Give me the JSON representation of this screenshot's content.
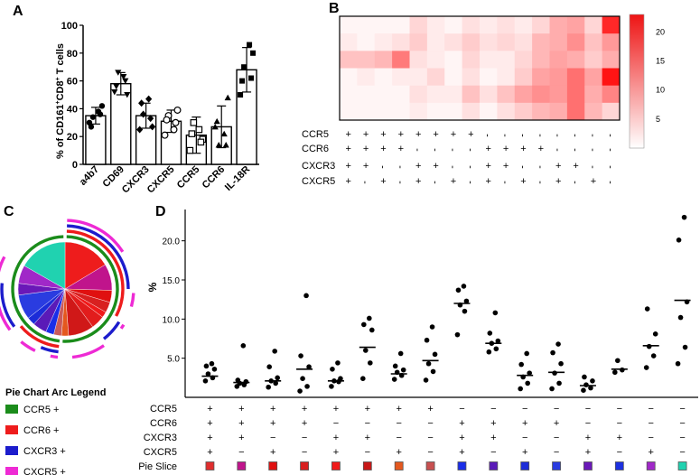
{
  "panels": {
    "A": "A",
    "B": "B",
    "C": "C",
    "D": "D"
  },
  "chart_data": [
    {
      "id": "A",
      "type": "bar",
      "ylabel": "% of CD161+CD8+ T cells",
      "ylabel_main": "% of CD161",
      "ylabel_sup1": "+",
      "ylabel_mid": "CD8",
      "ylabel_sup2": "+",
      "ylabel_tail": " T cells",
      "ylim": [
        0,
        100
      ],
      "yticks": [
        0,
        20,
        40,
        60,
        80,
        100
      ],
      "categories": [
        "a4b7",
        "CD69",
        "CXCR3",
        "CXCR5",
        "CCR5",
        "CCR6",
        "IL-18R"
      ],
      "marker_shapes": [
        "circle",
        "triangle-down",
        "diamond",
        "hollow-circle",
        "hollow-square",
        "triangle-up",
        "square"
      ],
      "values": [
        35,
        58,
        35,
        31,
        21,
        27,
        68
      ],
      "errors": [
        6,
        8,
        9,
        8,
        13,
        15,
        16
      ],
      "points": [
        [
          30,
          34,
          38,
          42,
          27,
          36
        ],
        [
          52,
          66,
          63,
          50,
          56,
          60
        ],
        [
          25,
          36,
          47,
          27,
          44,
          33
        ],
        [
          21,
          35,
          25,
          39,
          32,
          30
        ],
        [
          10,
          30,
          25,
          18,
          22,
          16
        ],
        [
          27,
          14,
          22,
          48,
          31,
          14
        ],
        [
          50,
          70,
          86,
          80,
          60,
          62
        ]
      ]
    },
    {
      "id": "B",
      "type": "heatmap",
      "colorbar_ticks": [
        5,
        10,
        15,
        20
      ],
      "colorbar_range": [
        0,
        23
      ],
      "row_labels": [
        "CCR5",
        "CCR6",
        "CXCR3",
        "CXCR5"
      ],
      "column_signs": [
        [
          "+",
          "+",
          "+",
          "+",
          "+",
          "+",
          "+",
          "+",
          "-",
          "-",
          "-",
          "-",
          "-",
          "-",
          "-",
          "-"
        ],
        [
          "+",
          "+",
          "+",
          "+",
          "-",
          "-",
          "-",
          "-",
          "+",
          "+",
          "+",
          "+",
          "-",
          "-",
          "-",
          "-"
        ],
        [
          "+",
          "+",
          "-",
          "-",
          "+",
          "+",
          "-",
          "-",
          "+",
          "+",
          "-",
          "-",
          "+",
          "+",
          "-",
          "-"
        ],
        [
          "+",
          "-",
          "+",
          "-",
          "+",
          "-",
          "+",
          "-",
          "+",
          "-",
          "+",
          "-",
          "+",
          "-",
          "+",
          "-"
        ]
      ],
      "matrix": [
        [
          1,
          1,
          1,
          1,
          4,
          2,
          1,
          3,
          2,
          3,
          2,
          4,
          8,
          9,
          4,
          21
        ],
        [
          2,
          1,
          2,
          3,
          5,
          2,
          3,
          5,
          3,
          4,
          3,
          7,
          8,
          11,
          6,
          10
        ],
        [
          6,
          6,
          7,
          13,
          3,
          2,
          1,
          4,
          2,
          2,
          4,
          7,
          9,
          8,
          5,
          8
        ],
        [
          1,
          2,
          1,
          2,
          2,
          4,
          1,
          3,
          1,
          2,
          5,
          9,
          10,
          14,
          9,
          23
        ],
        [
          1,
          1,
          1,
          1,
          3,
          2,
          2,
          6,
          3,
          6,
          9,
          11,
          10,
          14,
          8,
          12
        ],
        [
          1,
          1,
          1,
          1,
          2,
          1,
          1,
          3,
          1,
          3,
          5,
          7,
          8,
          14,
          7,
          4
        ]
      ]
    },
    {
      "id": "C",
      "type": "pie",
      "title": "Pie Chart Arc Legend",
      "slice_values": [
        12.2,
        6.8,
        3.1,
        2.7,
        1.5,
        3.5,
        6.6,
        1.8,
        2.0,
        2.1,
        3.6,
        2.1,
        6.4,
        3.0,
        4.7,
        12.5
      ],
      "slice_colors": [
        "#ee1c1c",
        "#c0148c",
        "#e01010",
        "#d82020",
        "#f01a1a",
        "#e21c1c",
        "#d01818",
        "#e4581e",
        "#ca5a5a",
        "#1a2ee8",
        "#5a1ab8",
        "#1c2cd8",
        "#2a3ce0",
        "#6a18b8",
        "#a028c8",
        "#20d2b0"
      ],
      "legend": [
        {
          "label": "CCR5 +",
          "color": "#1b8c1b"
        },
        {
          "label": "CCR6 +",
          "color": "#ee1c1c"
        },
        {
          "label": "CXCR3 +",
          "color": "#1c1ccc"
        },
        {
          "label": "CXCR5 +",
          "color": "#ee2ad4"
        }
      ]
    },
    {
      "id": "D",
      "type": "scatter",
      "ylabel": "%",
      "ylim": [
        0,
        24
      ],
      "yticks": [
        5.0,
        10.0,
        15.0,
        20.0
      ],
      "ytick_labels": [
        "5.0",
        "10.0",
        "15.0",
        "20.0"
      ],
      "medians": [
        2.7,
        1.9,
        2.1,
        3.6,
        2.1,
        6.4,
        3.0,
        4.7,
        12.0,
        6.9,
        2.8,
        3.2,
        1.5,
        3.6,
        6.6,
        12.4
      ],
      "points": [
        [
          2.1,
          2.5,
          3.0,
          3.6,
          4.0,
          4.3
        ],
        [
          1.4,
          1.6,
          1.8,
          2.0,
          2.2,
          6.6
        ],
        [
          1.3,
          1.8,
          2.1,
          2.5,
          3.9,
          5.9
        ],
        [
          0.8,
          1.4,
          2.4,
          3.9,
          5.3,
          13.0
        ],
        [
          1.4,
          2.0,
          2.1,
          2.4,
          3.6,
          4.4
        ],
        [
          2.4,
          4.4,
          6.0,
          8.6,
          9.3,
          10.1
        ],
        [
          2.3,
          2.8,
          3.2,
          3.5,
          4.0,
          5.6
        ],
        [
          2.2,
          3.3,
          4.3,
          5.5,
          7.3,
          9.0
        ],
        [
          8.0,
          11.0,
          11.8,
          12.3,
          13.7,
          14.2
        ],
        [
          5.8,
          6.2,
          6.9,
          7.2,
          8.2,
          10.8
        ],
        [
          1.1,
          1.8,
          2.6,
          3.1,
          4.2,
          5.6
        ],
        [
          1.1,
          1.8,
          3.1,
          4.3,
          5.7,
          6.8
        ],
        [
          0.9,
          1.2,
          1.6,
          2.1,
          2.6
        ],
        [
          3.2,
          3.5,
          4.7
        ],
        [
          3.8,
          5.3,
          6.5,
          8.1,
          11.3
        ],
        [
          4.3,
          6.4,
          10.2,
          12.2,
          20.1,
          23.0
        ]
      ],
      "row_labels": [
        "CCR5",
        "CCR6",
        "CXCR3",
        "CXCR5",
        "Pie Slice"
      ],
      "column_signs": [
        [
          "+",
          "+",
          "+",
          "+",
          "+",
          "+",
          "+",
          "+",
          "−",
          "−",
          "−",
          "−",
          "−",
          "−",
          "−",
          "−"
        ],
        [
          "+",
          "+",
          "+",
          "+",
          "−",
          "−",
          "−",
          "−",
          "+",
          "+",
          "+",
          "+",
          "−",
          "−",
          "−",
          "−"
        ],
        [
          "+",
          "+",
          "−",
          "−",
          "+",
          "+",
          "−",
          "−",
          "+",
          "+",
          "−",
          "−",
          "+",
          "+",
          "−",
          "−"
        ],
        [
          "+",
          "−",
          "+",
          "−",
          "+",
          "−",
          "+",
          "−",
          "+",
          "−",
          "+",
          "−",
          "+",
          "−",
          "+",
          "−"
        ]
      ],
      "slice_colors": [
        "#e02e2e",
        "#c0148c",
        "#e01010",
        "#d82020",
        "#f01a1a",
        "#c81818",
        "#e4581e",
        "#c85050",
        "#1a2ee8",
        "#5a1ab8",
        "#1c2cd8",
        "#2a3ce0",
        "#6a18b8",
        "#1c30e0",
        "#a028c8",
        "#20d2b0"
      ]
    }
  ]
}
